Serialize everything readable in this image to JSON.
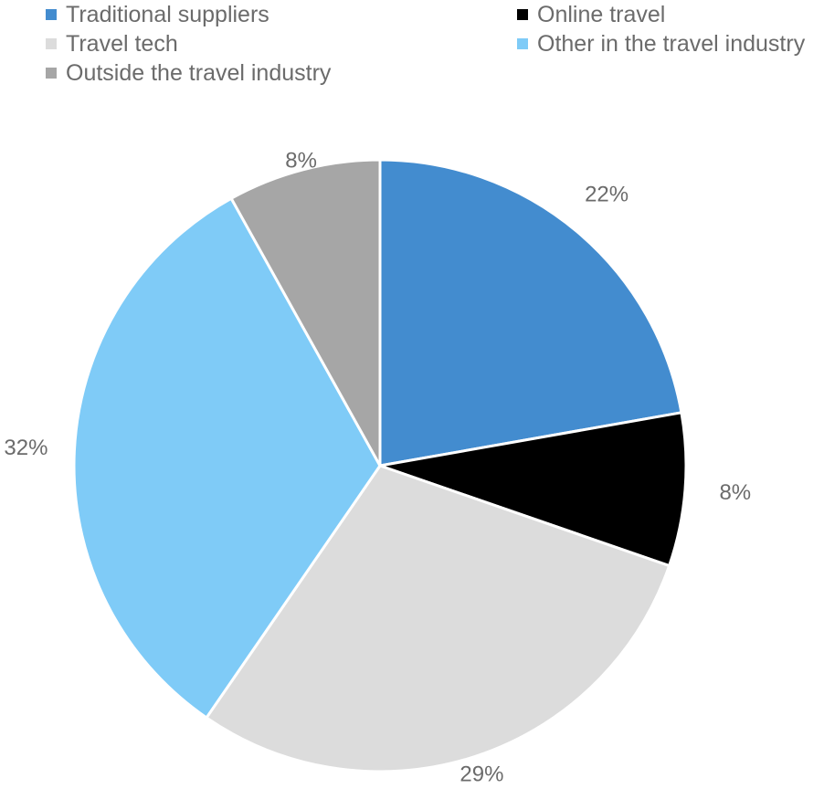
{
  "chart_data": {
    "type": "pie",
    "categories": [
      "Traditional suppliers",
      "Online travel",
      "Travel tech",
      "Other in the travel industry",
      "Outside the travel industry"
    ],
    "values": [
      22,
      8,
      29,
      32,
      8
    ],
    "labels": [
      "22%",
      "8%",
      "29%",
      "32%",
      "8%"
    ],
    "colors": [
      "#438ccf",
      "#000000",
      "#dcdcdc",
      "#7fcbf7",
      "#a6a6a6"
    ],
    "legend_position": "top",
    "start_angle": "12 o'clock",
    "direction": "clockwise"
  }
}
